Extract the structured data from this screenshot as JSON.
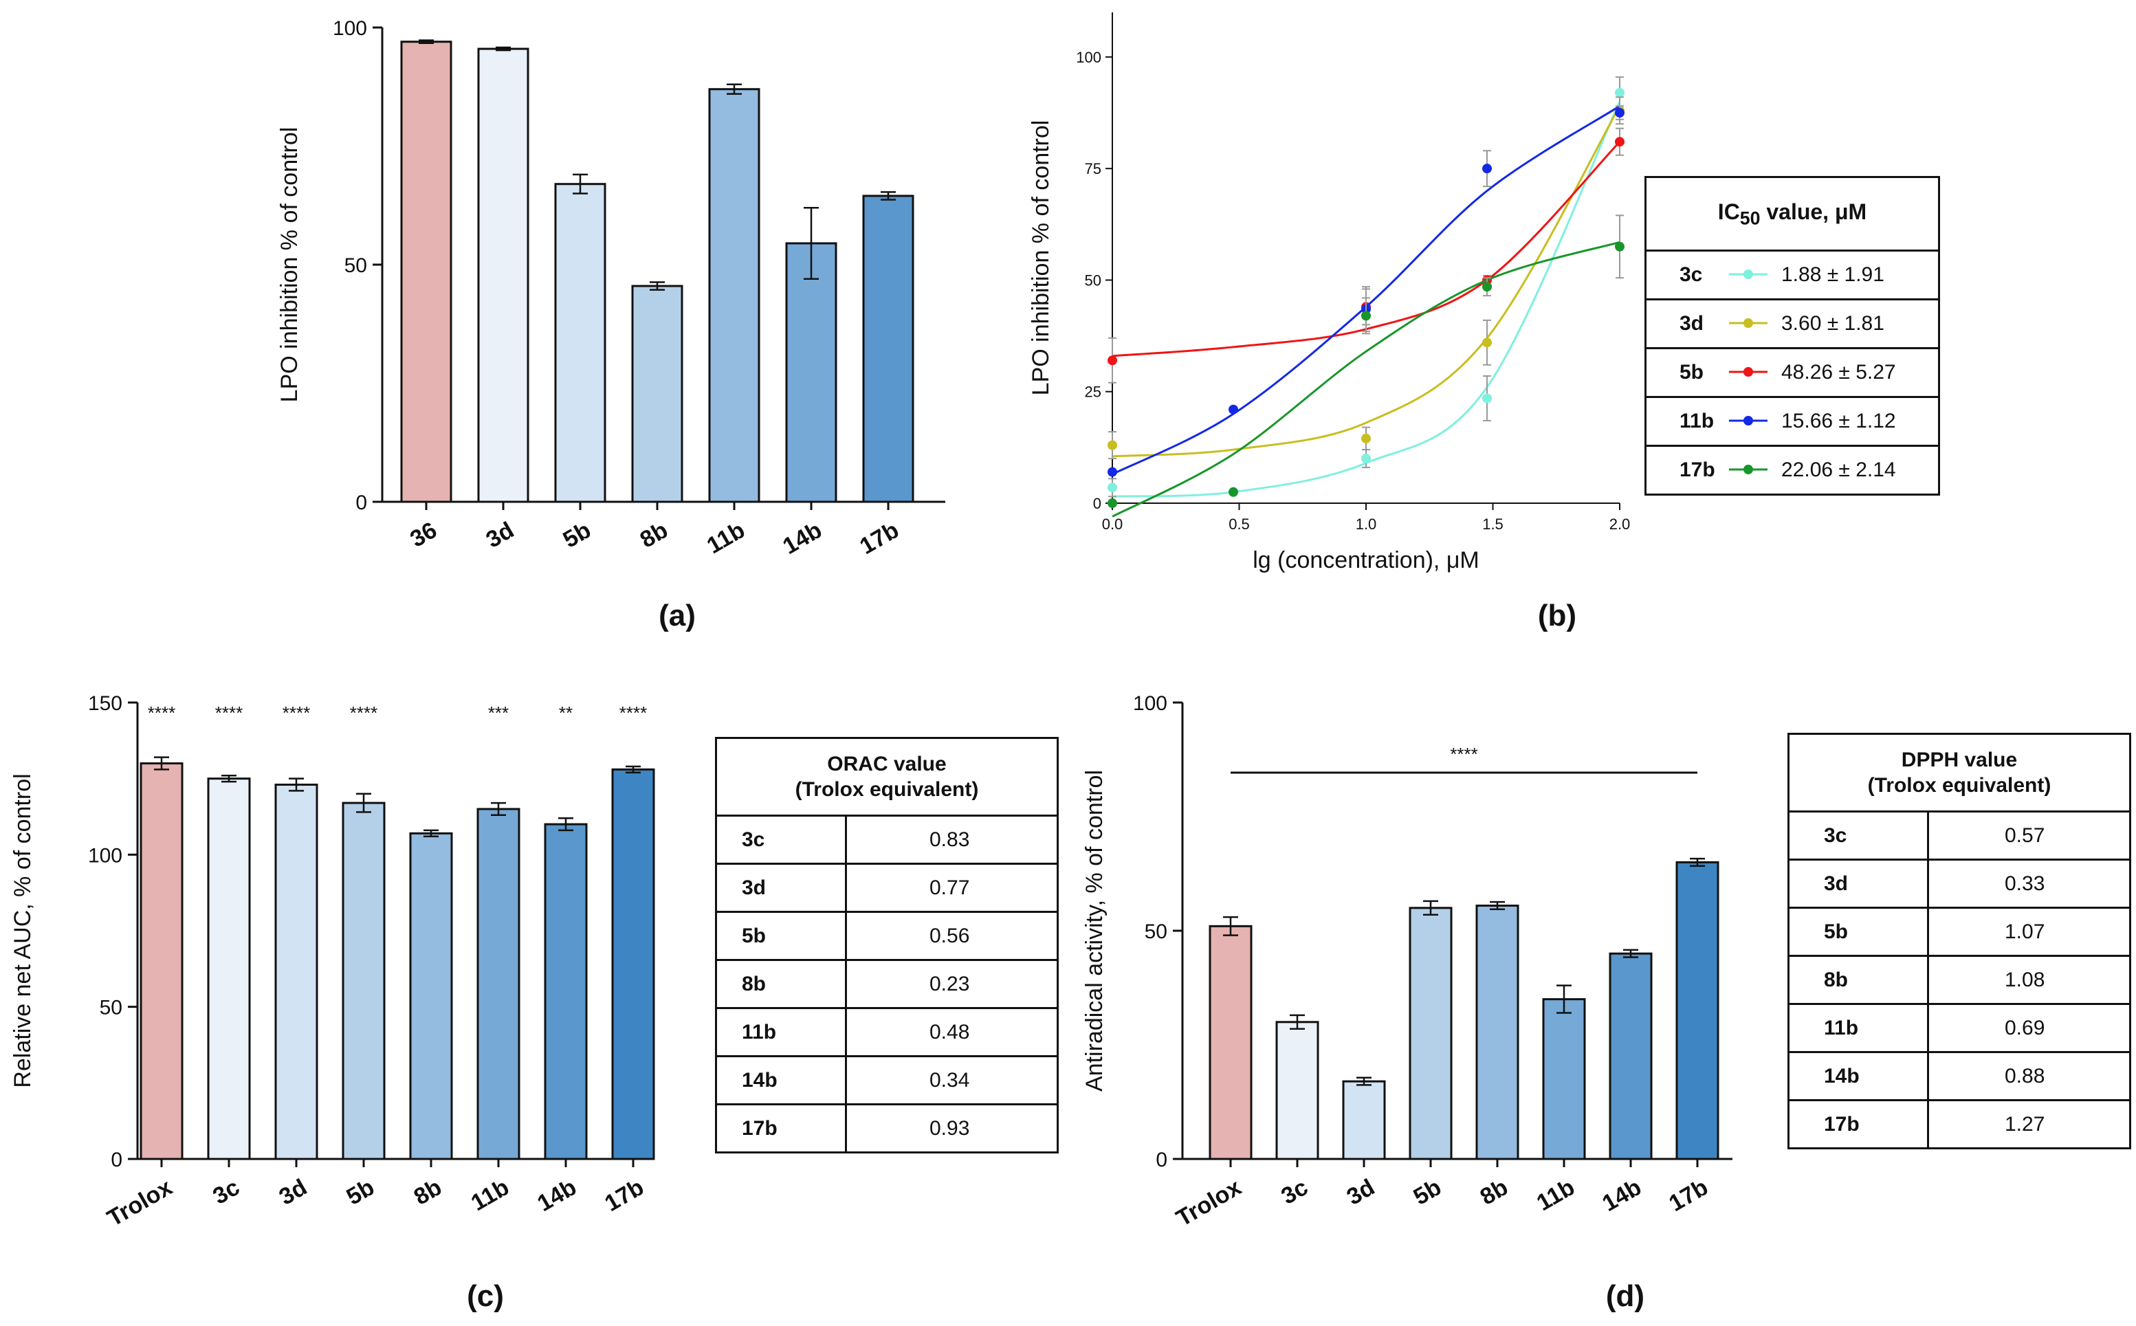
{
  "colors": {
    "ref": "#e5b3b1",
    "shades": [
      "#eaf1f9",
      "#d2e3f3",
      "#b4d0e9",
      "#94bbe0",
      "#77a9d6",
      "#5a97cd",
      "#3d86c3"
    ]
  },
  "chart_data": [
    {
      "panel": "a",
      "type": "bar",
      "panel_label": "(a)",
      "ylabel": "LPO inhibition % of control",
      "ylim": [
        0,
        100
      ],
      "yticks": [
        0,
        50,
        100
      ],
      "categories": [
        "36",
        "3d",
        "5b",
        "8b",
        "11b",
        "14b",
        "17b"
      ],
      "values": [
        97,
        95.5,
        67,
        45.5,
        87,
        54.5,
        64.5
      ],
      "errors": [
        0.3,
        0.3,
        2.0,
        0.8,
        1.0,
        7.5,
        0.8
      ],
      "colors": [
        "#e5b3b1",
        "#eaf1f9",
        "#d2e3f3",
        "#b4d0e9",
        "#94bbe0",
        "#77a9d6",
        "#5a97cd"
      ]
    },
    {
      "panel": "b",
      "type": "line",
      "panel_label": "(b)",
      "xlabel": "lg (concentration), μM",
      "ylabel": "LPO inhibition % of control",
      "xlim": [
        0,
        2
      ],
      "ylim": [
        0,
        110
      ],
      "xticks": [
        0.0,
        0.5,
        1.0,
        1.5,
        2.0
      ],
      "yticks": [
        0,
        25,
        50,
        75,
        100
      ],
      "x": [
        0,
        0.477,
        1.0,
        1.477,
        2.0
      ],
      "series": [
        {
          "name": "3c",
          "color": "#7ff0de",
          "values": [
            3.5,
            2.5,
            10,
            23.5,
            92
          ],
          "errors": [
            2,
            0,
            2,
            5,
            3.5
          ],
          "fit": [
            1.5,
            2.5,
            9,
            26,
            90
          ]
        },
        {
          "name": "3d",
          "color": "#c8be1e",
          "values": [
            13,
            null,
            14.5,
            36,
            88
          ],
          "errors": [
            3,
            0,
            2.5,
            5,
            3
          ],
          "fit": [
            10.5,
            12,
            18,
            37,
            89
          ]
        },
        {
          "name": "5b",
          "color": "#f01414",
          "values": [
            32,
            null,
            44,
            50,
            81
          ],
          "errors": [
            5,
            0,
            4,
            1,
            3
          ],
          "fit": [
            33,
            35,
            39,
            50,
            81
          ]
        },
        {
          "name": "11b",
          "color": "#1428e6",
          "values": [
            7,
            21,
            43.5,
            75,
            87.5
          ],
          "errors": [
            0,
            0,
            5,
            4,
            1.5
          ],
          "fit": [
            6.5,
            20,
            44,
            70,
            89
          ]
        },
        {
          "name": "17b",
          "color": "#18962a",
          "values": [
            0,
            2.5,
            42,
            48.5,
            57.5
          ],
          "errors": [
            0,
            0,
            4,
            2,
            7
          ],
          "fit": [
            -3,
            11,
            34,
            50,
            58.5
          ]
        }
      ]
    },
    {
      "panel": "c",
      "type": "bar",
      "panel_label": "(c)",
      "ylabel": "Relative net AUC, % of control",
      "ylim": [
        0,
        150
      ],
      "yticks": [
        0,
        50,
        100,
        150
      ],
      "categories": [
        "Trolox",
        "3c",
        "3d",
        "5b",
        "8b",
        "11b",
        "14b",
        "17b"
      ],
      "values": [
        130,
        125,
        123,
        117,
        107,
        115,
        110,
        128
      ],
      "errors": [
        2,
        1,
        2,
        3,
        1,
        2,
        2,
        1
      ],
      "significance": [
        "****",
        "****",
        "****",
        "****",
        "",
        "***",
        "**",
        "****"
      ],
      "colors": [
        "#e5b3b1",
        "#eaf1f9",
        "#d2e3f3",
        "#b4d0e9",
        "#94bbe0",
        "#77a9d6",
        "#5a97cd",
        "#3d86c3"
      ]
    },
    {
      "panel": "d",
      "type": "bar",
      "panel_label": "(d)",
      "ylabel": "Antiradical activity, % of control",
      "ylim": [
        0,
        100
      ],
      "yticks": [
        0,
        50,
        100
      ],
      "categories": [
        "Trolox",
        "3c",
        "3d",
        "5b",
        "8b",
        "11b",
        "14b",
        "17b"
      ],
      "values": [
        51,
        30,
        17,
        55,
        55.5,
        35,
        45,
        65
      ],
      "errors": [
        2,
        1.5,
        0.8,
        1.5,
        0.8,
        3,
        0.8,
        0.8
      ],
      "significance_bar": "****",
      "colors": [
        "#e5b3b1",
        "#eaf1f9",
        "#d2e3f3",
        "#b4d0e9",
        "#94bbe0",
        "#77a9d6",
        "#5a97cd",
        "#3d86c3"
      ]
    }
  ],
  "table_b": {
    "header_main": "IC",
    "header_sub": "50",
    "header_rest": " value, μM",
    "rows": [
      {
        "name": "3c",
        "color": "#7ff0de",
        "value": "1.88 ± 1.91"
      },
      {
        "name": "3d",
        "color": "#c8be1e",
        "value": "3.60 ± 1.81"
      },
      {
        "name": "5b",
        "color": "#f01414",
        "value": "48.26 ± 5.27"
      },
      {
        "name": "11b",
        "color": "#1428e6",
        "value": "15.66 ± 1.12"
      },
      {
        "name": "17b",
        "color": "#18962a",
        "value": "22.06 ± 2.14"
      }
    ]
  },
  "table_c": {
    "header_1": "ORAC value",
    "header_2": "(Trolox equivalent)",
    "rows": [
      {
        "name": "3c",
        "value": "0.83"
      },
      {
        "name": "3d",
        "value": "0.77"
      },
      {
        "name": "5b",
        "value": "0.56"
      },
      {
        "name": "8b",
        "value": "0.23"
      },
      {
        "name": "11b",
        "value": "0.48"
      },
      {
        "name": "14b",
        "value": "0.34"
      },
      {
        "name": "17b",
        "value": "0.93"
      }
    ]
  },
  "table_d": {
    "header_1": "DPPH value",
    "header_2": "(Trolox equivalent)",
    "rows": [
      {
        "name": "3c",
        "value": "0.57"
      },
      {
        "name": "3d",
        "value": "0.33"
      },
      {
        "name": "5b",
        "value": "1.07"
      },
      {
        "name": "8b",
        "value": "1.08"
      },
      {
        "name": "11b",
        "value": "0.69"
      },
      {
        "name": "14b",
        "value": "0.88"
      },
      {
        "name": "17b",
        "value": "1.27"
      }
    ]
  }
}
